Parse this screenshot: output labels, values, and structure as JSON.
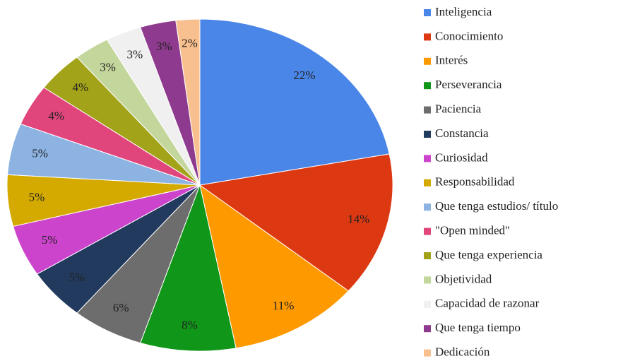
{
  "chart_data": {
    "type": "pie",
    "categories": [
      "Inteligencia",
      "Conocimiento",
      "Interés",
      "Perseverancia",
      "Paciencia",
      "Constancia",
      "Curiosidad",
      "Responsabilidad",
      "Que tenga estudios/ título",
      "\"Open minded\"",
      "Que tenga experiencia",
      "Objetividad",
      "Capacidad de razonar",
      "Que tenga tiempo",
      "Dedicación"
    ],
    "values": [
      22,
      14,
      11,
      8,
      6,
      5,
      5,
      5,
      5,
      4,
      4,
      3,
      3,
      3,
      2
    ],
    "value_labels": [
      "22%",
      "14%",
      "11%",
      "8%",
      "6%",
      "5%",
      "5%",
      "5%",
      "5%",
      "4%",
      "4%",
      "3%",
      "3%",
      "3%",
      "2%"
    ],
    "colors": [
      "#4a86e8",
      "#dc3912",
      "#ff9900",
      "#109618",
      "#6d6d6d",
      "#223a5e",
      "#cc44cc",
      "#d4aa00",
      "#8db3e2",
      "#e0457b",
      "#a3a31a",
      "#c3d69b",
      "#f0f0f0",
      "#8e3a8e",
      "#f9c08f"
    ],
    "legend": "right"
  }
}
